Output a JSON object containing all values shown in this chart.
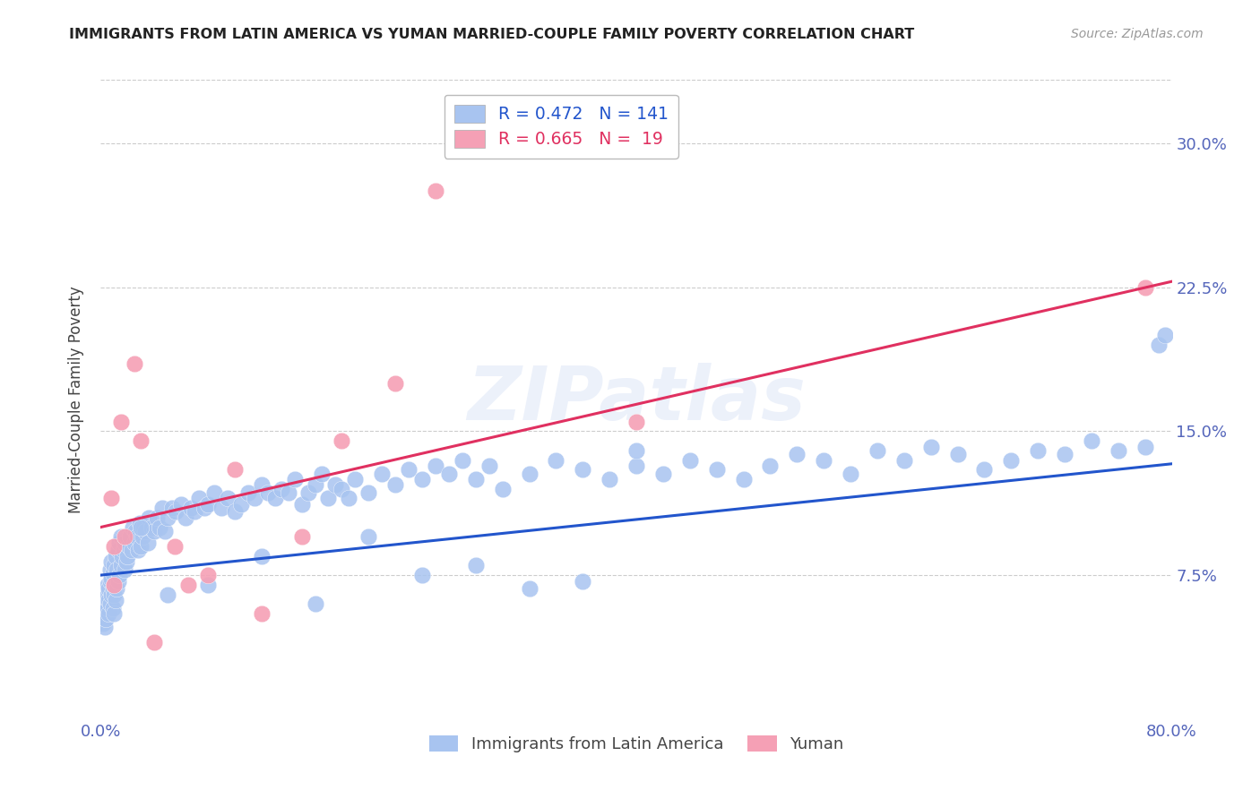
{
  "title": "IMMIGRANTS FROM LATIN AMERICA VS YUMAN MARRIED-COUPLE FAMILY POVERTY CORRELATION CHART",
  "source": "Source: ZipAtlas.com",
  "ylabel": "Married-Couple Family Poverty",
  "xlim": [
    0.0,
    0.8
  ],
  "ylim": [
    0.0,
    0.333
  ],
  "ytick_positions": [
    0.075,
    0.15,
    0.225,
    0.3
  ],
  "ytick_labels": [
    "7.5%",
    "15.0%",
    "22.5%",
    "30.0%"
  ],
  "blue_R": 0.472,
  "blue_N": 141,
  "pink_R": 0.665,
  "pink_N": 19,
  "blue_color": "#a8c4f0",
  "pink_color": "#f5a0b5",
  "blue_line_color": "#2255cc",
  "pink_line_color": "#e03060",
  "watermark": "ZIPatlas",
  "legend_label_blue": "Immigrants from Latin America",
  "legend_label_pink": "Yuman",
  "blue_trend_x0": 0.0,
  "blue_trend_x1": 0.8,
  "blue_trend_y0": 0.075,
  "blue_trend_y1": 0.133,
  "pink_trend_x0": 0.0,
  "pink_trend_x1": 0.8,
  "pink_trend_y0": 0.1,
  "pink_trend_y1": 0.228,
  "blue_x": [
    0.002,
    0.003,
    0.003,
    0.004,
    0.004,
    0.005,
    0.005,
    0.005,
    0.006,
    0.006,
    0.006,
    0.007,
    0.007,
    0.007,
    0.008,
    0.008,
    0.008,
    0.009,
    0.009,
    0.009,
    0.01,
    0.01,
    0.01,
    0.01,
    0.011,
    0.011,
    0.012,
    0.012,
    0.013,
    0.013,
    0.014,
    0.014,
    0.015,
    0.015,
    0.016,
    0.017,
    0.018,
    0.018,
    0.019,
    0.02,
    0.021,
    0.022,
    0.023,
    0.024,
    0.025,
    0.026,
    0.027,
    0.028,
    0.029,
    0.03,
    0.031,
    0.032,
    0.033,
    0.035,
    0.036,
    0.038,
    0.04,
    0.042,
    0.044,
    0.046,
    0.048,
    0.05,
    0.053,
    0.056,
    0.06,
    0.063,
    0.067,
    0.07,
    0.073,
    0.077,
    0.08,
    0.085,
    0.09,
    0.095,
    0.1,
    0.105,
    0.11,
    0.115,
    0.12,
    0.125,
    0.13,
    0.135,
    0.14,
    0.145,
    0.15,
    0.155,
    0.16,
    0.165,
    0.17,
    0.175,
    0.18,
    0.185,
    0.19,
    0.2,
    0.21,
    0.22,
    0.23,
    0.24,
    0.25,
    0.26,
    0.27,
    0.28,
    0.29,
    0.3,
    0.32,
    0.34,
    0.36,
    0.38,
    0.4,
    0.42,
    0.44,
    0.46,
    0.48,
    0.5,
    0.52,
    0.54,
    0.56,
    0.58,
    0.6,
    0.62,
    0.64,
    0.66,
    0.68,
    0.7,
    0.72,
    0.74,
    0.76,
    0.78,
    0.79,
    0.795,
    0.03,
    0.05,
    0.08,
    0.12,
    0.16,
    0.2,
    0.24,
    0.28,
    0.32,
    0.36,
    0.4
  ],
  "blue_y": [
    0.05,
    0.055,
    0.048,
    0.06,
    0.052,
    0.065,
    0.058,
    0.07,
    0.062,
    0.068,
    0.055,
    0.072,
    0.06,
    0.078,
    0.065,
    0.073,
    0.082,
    0.068,
    0.076,
    0.058,
    0.055,
    0.065,
    0.07,
    0.08,
    0.062,
    0.085,
    0.068,
    0.078,
    0.072,
    0.088,
    0.075,
    0.092,
    0.08,
    0.095,
    0.085,
    0.088,
    0.078,
    0.092,
    0.082,
    0.085,
    0.09,
    0.095,
    0.088,
    0.1,
    0.092,
    0.098,
    0.095,
    0.088,
    0.102,
    0.09,
    0.095,
    0.1,
    0.098,
    0.092,
    0.105,
    0.1,
    0.098,
    0.105,
    0.1,
    0.11,
    0.098,
    0.105,
    0.11,
    0.108,
    0.112,
    0.105,
    0.11,
    0.108,
    0.115,
    0.11,
    0.112,
    0.118,
    0.11,
    0.115,
    0.108,
    0.112,
    0.118,
    0.115,
    0.122,
    0.118,
    0.115,
    0.12,
    0.118,
    0.125,
    0.112,
    0.118,
    0.122,
    0.128,
    0.115,
    0.122,
    0.12,
    0.115,
    0.125,
    0.118,
    0.128,
    0.122,
    0.13,
    0.125,
    0.132,
    0.128,
    0.135,
    0.125,
    0.132,
    0.12,
    0.128,
    0.135,
    0.13,
    0.125,
    0.132,
    0.128,
    0.135,
    0.13,
    0.125,
    0.132,
    0.138,
    0.135,
    0.128,
    0.14,
    0.135,
    0.142,
    0.138,
    0.13,
    0.135,
    0.14,
    0.138,
    0.145,
    0.14,
    0.142,
    0.195,
    0.2,
    0.1,
    0.065,
    0.07,
    0.085,
    0.06,
    0.095,
    0.075,
    0.08,
    0.068,
    0.072,
    0.14
  ],
  "pink_x": [
    0.008,
    0.01,
    0.015,
    0.018,
    0.025,
    0.03,
    0.04,
    0.055,
    0.065,
    0.08,
    0.1,
    0.12,
    0.15,
    0.18,
    0.22,
    0.25,
    0.4,
    0.78,
    0.01
  ],
  "pink_y": [
    0.115,
    0.09,
    0.155,
    0.095,
    0.185,
    0.145,
    0.04,
    0.09,
    0.07,
    0.075,
    0.13,
    0.055,
    0.095,
    0.145,
    0.175,
    0.275,
    0.155,
    0.225,
    0.07
  ]
}
